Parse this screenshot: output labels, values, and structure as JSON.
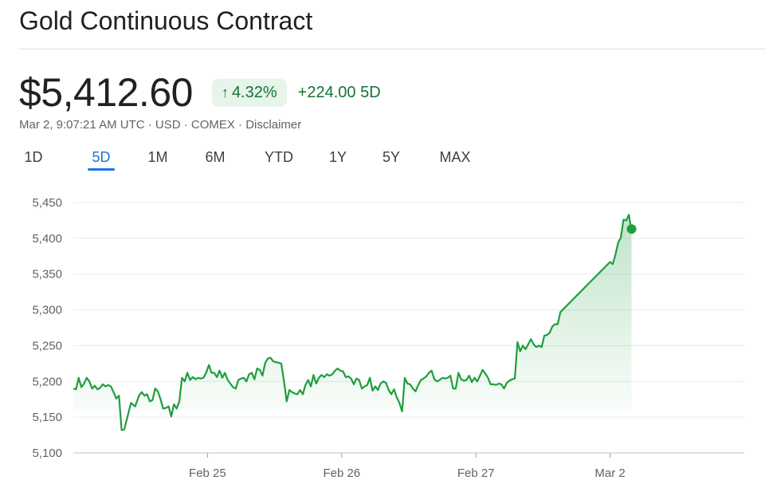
{
  "header": {
    "title": "Gold Continuous Contract"
  },
  "quote": {
    "price": "$5,412.60",
    "change_percent": "4.32%",
    "change_arrow": "↑",
    "change_absolute": "+224.00 5D",
    "meta": "Mar 2, 9:07:21 AM UTC · USD · COMEX · Disclaimer"
  },
  "tabs": [
    {
      "label": "1D"
    },
    {
      "label": "5D",
      "active": true
    },
    {
      "label": "1M"
    },
    {
      "label": "6M"
    },
    {
      "label": "YTD"
    },
    {
      "label": "1Y"
    },
    {
      "label": "5Y"
    },
    {
      "label": "MAX"
    }
  ],
  "colors": {
    "line": "#1e9e3e",
    "accent": "#1a73e8",
    "positive": "#137333",
    "badge_bg": "#e6f4ea"
  },
  "chart_data": {
    "type": "line",
    "title": "",
    "xlabel": "",
    "ylabel": "",
    "ylim": [
      5100,
      5450
    ],
    "yticks": [
      5450,
      5400,
      5350,
      5300,
      5250,
      5200,
      5150,
      5100
    ],
    "ytick_labels": [
      "5,450",
      "5,400",
      "5,350",
      "5,300",
      "5,250",
      "5,200",
      "5,150",
      "5,100"
    ],
    "xticks": [
      {
        "label": "Feb 25",
        "x": 1.0
      },
      {
        "label": "Feb 26",
        "x": 2.0
      },
      {
        "label": "Feb 27",
        "x": 3.0
      },
      {
        "label": "Mar 2",
        "x": 4.0
      }
    ],
    "xlim": [
      0,
      5.0
    ],
    "grid": true,
    "series": [
      {
        "points": [
          [
            0.0,
            5190
          ],
          [
            0.02,
            5189
          ],
          [
            0.04,
            5205
          ],
          [
            0.06,
            5192
          ],
          [
            0.08,
            5197
          ],
          [
            0.1,
            5205
          ],
          [
            0.12,
            5200
          ],
          [
            0.14,
            5190
          ],
          [
            0.16,
            5194
          ],
          [
            0.18,
            5189
          ],
          [
            0.2,
            5191
          ],
          [
            0.22,
            5196
          ],
          [
            0.24,
            5193
          ],
          [
            0.26,
            5195
          ],
          [
            0.28,
            5193
          ],
          [
            0.3,
            5185
          ],
          [
            0.32,
            5176
          ],
          [
            0.34,
            5180
          ],
          [
            0.36,
            5132
          ],
          [
            0.38,
            5133
          ],
          [
            0.4,
            5148
          ],
          [
            0.43,
            5170
          ],
          [
            0.46,
            5165
          ],
          [
            0.49,
            5180
          ],
          [
            0.51,
            5185
          ],
          [
            0.53,
            5180
          ],
          [
            0.55,
            5182
          ],
          [
            0.57,
            5172
          ],
          [
            0.59,
            5174
          ],
          [
            0.61,
            5190
          ],
          [
            0.63,
            5186
          ],
          [
            0.65,
            5175
          ],
          [
            0.67,
            5162
          ],
          [
            0.69,
            5163
          ],
          [
            0.71,
            5165
          ],
          [
            0.73,
            5151
          ],
          [
            0.75,
            5168
          ],
          [
            0.77,
            5162
          ],
          [
            0.79,
            5172
          ],
          [
            0.81,
            5205
          ],
          [
            0.83,
            5200
          ],
          [
            0.85,
            5212
          ],
          [
            0.87,
            5202
          ],
          [
            0.89,
            5206
          ],
          [
            0.91,
            5203
          ],
          [
            0.93,
            5205
          ],
          [
            0.95,
            5204
          ],
          [
            0.97,
            5205
          ],
          [
            0.99,
            5212
          ],
          [
            1.01,
            5223
          ],
          [
            1.03,
            5212
          ],
          [
            1.05,
            5212
          ],
          [
            1.07,
            5206
          ],
          [
            1.09,
            5215
          ],
          [
            1.11,
            5205
          ],
          [
            1.13,
            5212
          ],
          [
            1.15,
            5202
          ],
          [
            1.17,
            5197
          ],
          [
            1.19,
            5192
          ],
          [
            1.21,
            5190
          ],
          [
            1.23,
            5202
          ],
          [
            1.25,
            5204
          ],
          [
            1.27,
            5205
          ],
          [
            1.29,
            5200
          ],
          [
            1.31,
            5210
          ],
          [
            1.33,
            5212
          ],
          [
            1.35,
            5203
          ],
          [
            1.37,
            5218
          ],
          [
            1.39,
            5216
          ],
          [
            1.41,
            5208
          ],
          [
            1.43,
            5226
          ],
          [
            1.45,
            5232
          ],
          [
            1.47,
            5233
          ],
          [
            1.49,
            5228
          ],
          [
            1.51,
            5227
          ],
          [
            1.53,
            5226
          ],
          [
            1.55,
            5225
          ],
          [
            1.57,
            5200
          ],
          [
            1.59,
            5172
          ],
          [
            1.61,
            5188
          ],
          [
            1.63,
            5185
          ],
          [
            1.65,
            5183
          ],
          [
            1.67,
            5182
          ],
          [
            1.69,
            5188
          ],
          [
            1.71,
            5182
          ],
          [
            1.73,
            5195
          ],
          [
            1.75,
            5202
          ],
          [
            1.77,
            5193
          ],
          [
            1.79,
            5209
          ],
          [
            1.81,
            5197
          ],
          [
            1.83,
            5205
          ],
          [
            1.85,
            5209
          ],
          [
            1.87,
            5206
          ],
          [
            1.89,
            5210
          ],
          [
            1.91,
            5208
          ],
          [
            1.93,
            5210
          ],
          [
            1.95,
            5215
          ],
          [
            1.97,
            5218
          ],
          [
            1.99,
            5215
          ],
          [
            2.01,
            5214
          ],
          [
            2.03,
            5206
          ],
          [
            2.05,
            5207
          ],
          [
            2.07,
            5204
          ],
          [
            2.09,
            5196
          ],
          [
            2.11,
            5204
          ],
          [
            2.13,
            5202
          ],
          [
            2.15,
            5190
          ],
          [
            2.17,
            5193
          ],
          [
            2.19,
            5195
          ],
          [
            2.21,
            5205
          ],
          [
            2.23,
            5187
          ],
          [
            2.25,
            5193
          ],
          [
            2.27,
            5188
          ],
          [
            2.29,
            5197
          ],
          [
            2.31,
            5200
          ],
          [
            2.33,
            5198
          ],
          [
            2.35,
            5188
          ],
          [
            2.37,
            5182
          ],
          [
            2.39,
            5189
          ],
          [
            2.41,
            5178
          ],
          [
            2.43,
            5170
          ],
          [
            2.45,
            5158
          ],
          [
            2.47,
            5205
          ],
          [
            2.49,
            5197
          ],
          [
            2.51,
            5196
          ],
          [
            2.53,
            5190
          ],
          [
            2.55,
            5186
          ],
          [
            2.57,
            5195
          ],
          [
            2.59,
            5202
          ],
          [
            2.61,
            5204
          ],
          [
            2.63,
            5207
          ],
          [
            2.65,
            5212
          ],
          [
            2.67,
            5215
          ],
          [
            2.69,
            5203
          ],
          [
            2.71,
            5200
          ],
          [
            2.73,
            5202
          ],
          [
            2.75,
            5205
          ],
          [
            2.77,
            5204
          ],
          [
            2.79,
            5205
          ],
          [
            2.81,
            5208
          ],
          [
            2.83,
            5190
          ],
          [
            2.85,
            5190
          ],
          [
            2.87,
            5212
          ],
          [
            2.89,
            5203
          ],
          [
            2.91,
            5201
          ],
          [
            2.93,
            5202
          ],
          [
            2.95,
            5208
          ],
          [
            2.97,
            5199
          ],
          [
            2.99,
            5205
          ],
          [
            3.01,
            5200
          ],
          [
            3.03,
            5208
          ],
          [
            3.05,
            5216
          ],
          [
            3.07,
            5211
          ],
          [
            3.09,
            5205
          ],
          [
            3.11,
            5196
          ],
          [
            3.13,
            5196
          ],
          [
            3.15,
            5195
          ],
          [
            3.17,
            5197
          ],
          [
            3.19,
            5196
          ],
          [
            3.21,
            5190
          ],
          [
            3.23,
            5198
          ],
          [
            3.25,
            5201
          ],
          [
            3.27,
            5203
          ],
          [
            3.29,
            5204
          ],
          [
            3.31,
            5255
          ],
          [
            3.33,
            5242
          ],
          [
            3.35,
            5250
          ],
          [
            3.37,
            5245
          ],
          [
            3.39,
            5252
          ],
          [
            3.41,
            5259
          ],
          [
            3.43,
            5252
          ],
          [
            3.45,
            5248
          ],
          [
            3.47,
            5250
          ],
          [
            3.49,
            5248
          ],
          [
            3.51,
            5264
          ],
          [
            3.53,
            5265
          ],
          [
            3.55,
            5268
          ],
          [
            3.57,
            5277
          ],
          [
            3.59,
            5280
          ],
          [
            3.61,
            5280
          ],
          [
            3.63,
            5297
          ],
          [
            4.0,
            5367
          ],
          [
            4.02,
            5364
          ],
          [
            4.04,
            5377
          ],
          [
            4.06,
            5394
          ],
          [
            4.08,
            5401
          ],
          [
            4.1,
            5426
          ],
          [
            4.12,
            5425
          ],
          [
            4.14,
            5433
          ],
          [
            4.15,
            5421
          ],
          [
            4.16,
            5413
          ]
        ]
      }
    ],
    "last_point": [
      4.16,
      5413
    ]
  }
}
